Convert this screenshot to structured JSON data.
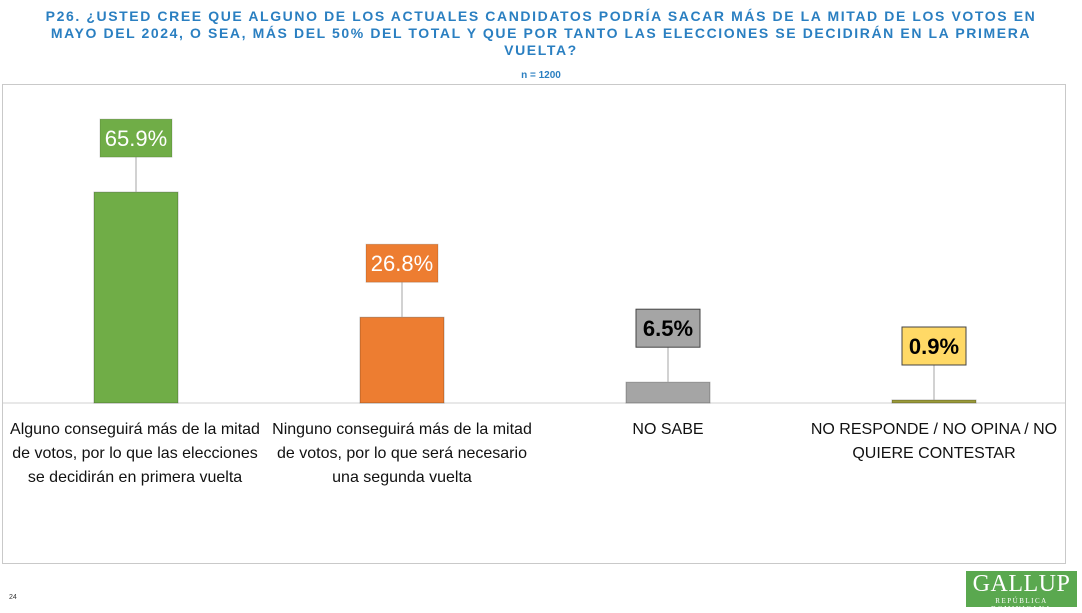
{
  "title": "P26.  ¿USTED CREE QUE ALGUNO DE LOS ACTUALES CANDIDATOS PODRÍA SACAR MÁS DE LA MITAD DE LOS VOTOS EN MAYO DEL 2024, O SEA, MÁS DEL 50% DEL TOTAL Y QUE POR TANTO LAS ELECCIONES SE DECIDIRÁN EN LA PRIMERA VUELTA?",
  "sample_size": "n = 1200",
  "page_number": "24",
  "logo": {
    "brand": "GALLUP",
    "subtitle": "REPÚBLICA DOMINICANA"
  },
  "colors": {
    "green": "#70ad47",
    "orange": "#ed7d31",
    "gray": "#a5a5a5",
    "yellow": "#ffd966",
    "connector": "#a6a6a6",
    "axis": "#d0d0d0"
  },
  "chart_data": {
    "type": "bar",
    "title": "P26.  ¿USTED CREE QUE ALGUNO DE LOS ACTUALES CANDIDATOS PODRÍA SACAR MÁS DE LA MITAD DE LOS VOTOS EN MAYO DEL 2024, O SEA, MÁS DEL 50% DEL TOTAL Y QUE POR TANTO LAS ELECCIONES SE DECIDIRÁN EN LA PRIMERA VUELTA?",
    "categories": [
      "Alguno conseguirá más de la mitad de votos, por lo que las elecciones se decidirán en primera vuelta",
      "Ninguno conseguirá más de la mitad de votos,  por lo que será necesario una segunda vuelta",
      "NO SABE",
      "NO RESPONDE / NO OPINA / NO QUIERE CONTESTAR"
    ],
    "values": [
      65.9,
      26.8,
      6.5,
      0.9
    ],
    "data_labels": [
      "65.9%",
      "26.8%",
      "6.5%",
      "0.9%"
    ],
    "bar_colors": [
      "#70ad47",
      "#ed7d31",
      "#a5a5a5",
      "#9a9a3a"
    ],
    "label_fill_colors": [
      "#70ad47",
      "#ed7d31",
      "#a5a5a5",
      "#ffd966"
    ],
    "label_text_colors": [
      "#ffffff",
      "#ffffff",
      "#000000",
      "#000000"
    ],
    "xlabel": "",
    "ylabel": "",
    "ylim": [
      0,
      100
    ],
    "grid": false,
    "legend": "none"
  }
}
